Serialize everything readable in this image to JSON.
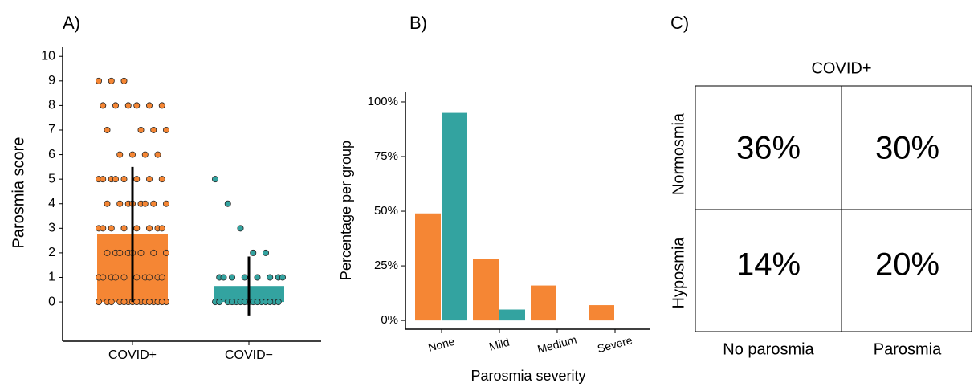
{
  "chart_data": [
    {
      "type": "jitter_bar",
      "panel_label": "A)",
      "ylabel": "Parosmia score",
      "categories": [
        "COVID+",
        "COVID−"
      ],
      "colors": [
        "#F58634",
        "#33A3A0"
      ],
      "values": [
        2.75,
        0.65
      ],
      "error": [
        2.75,
        1.2
      ],
      "points": [
        [
          9,
          9,
          9,
          8,
          8,
          8,
          8,
          8,
          8,
          7,
          7,
          7,
          7,
          6,
          6,
          6,
          6,
          5,
          5,
          5,
          5,
          5,
          5,
          5,
          5,
          4,
          4,
          4,
          4,
          4,
          4,
          4,
          4,
          3,
          3,
          3,
          3,
          3,
          3,
          3,
          3,
          2,
          2,
          2,
          2,
          2,
          2,
          2,
          2,
          1,
          1,
          1,
          1,
          1,
          1,
          1,
          1,
          1,
          1,
          0,
          0,
          0,
          0,
          0,
          0,
          0,
          0,
          0,
          0,
          0,
          0,
          0,
          0,
          0
        ],
        [
          5,
          4,
          3,
          2,
          2,
          1,
          1,
          1,
          1,
          1,
          1,
          1,
          1,
          0,
          0,
          0,
          0,
          0,
          0,
          0,
          0,
          0,
          0,
          0,
          0,
          0,
          0,
          0
        ]
      ],
      "ylim": [
        -1.6,
        10.4
      ],
      "yticks": [
        0,
        1,
        2,
        3,
        4,
        5,
        6,
        7,
        8,
        9,
        10
      ]
    },
    {
      "type": "grouped_bar",
      "panel_label": "B)",
      "xlabel": "Parosmia severity",
      "ylabel": "Percentage per group",
      "categories": [
        "None",
        "Mild",
        "Medium",
        "Severe"
      ],
      "series": [
        {
          "color": "#F58634",
          "values": [
            49,
            28,
            16,
            7
          ]
        },
        {
          "color": "#33A3A0",
          "values": [
            95,
            5,
            0,
            0
          ]
        }
      ],
      "ylim": [
        -4,
        104.4
      ],
      "yticks": [
        {
          "value": 0,
          "label": "0%"
        },
        {
          "value": 25,
          "label": "25%"
        },
        {
          "value": 50,
          "label": "50%"
        },
        {
          "value": 75,
          "label": "75%"
        },
        {
          "value": 100,
          "label": "100%"
        }
      ]
    },
    {
      "type": "table",
      "panel_label": "C)",
      "title": "COVID+",
      "rows": [
        "Normosmia",
        "Hyposmia"
      ],
      "columns": [
        "No parosmia",
        "Parosmia"
      ],
      "values": [
        [
          36,
          30
        ],
        [
          14,
          20
        ]
      ],
      "value_labels": [
        [
          "36%",
          "30%"
        ],
        [
          "14%",
          "20%"
        ]
      ]
    }
  ]
}
